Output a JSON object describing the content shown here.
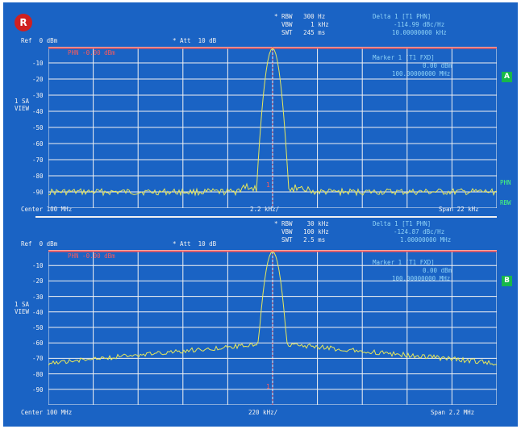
{
  "logo": "R",
  "colors": {
    "background": "#1a63c4",
    "grid": "#f2f2f2",
    "trace": "#e8e85a",
    "refline": "#ff5a5a",
    "text": "#f2f2f2",
    "marker": "#8fd3f7",
    "badge": "#17b84a"
  },
  "top": {
    "settings": [
      "* RBW   300 Hz",
      "  VBW     1 kHz",
      "  SWT   245 ms"
    ],
    "ref": "Ref  0 dBm",
    "att": "* Att  10 dB",
    "marker_readout": [
      "Delta 1 [T1 PHN]",
      "-114.99 dBc/Hz",
      "10.00000000 kHz"
    ],
    "marker2_readout": [
      "Marker 1 [T1 FXD]",
      "0.00 dBm",
      "100.00000000 MHz"
    ],
    "view": [
      "1 SA",
      "VIEW"
    ],
    "badge": "A",
    "ref_level_label": "PHN -0.00 dBm",
    "y_labels": [
      "-10",
      "-20",
      "-30",
      "-40",
      "-50",
      "-60",
      "-70",
      "-80",
      "-90"
    ],
    "footer_left": "Center 100 MHz",
    "footer_mid": "2.2 kHz/",
    "footer_right": "Span 22 kHz",
    "right_labels": [
      "PHN",
      "RBW"
    ]
  },
  "bottom": {
    "settings": [
      "* RBW    30 kHz",
      "  VBW   100 kHz",
      "  SWT   2.5 ms"
    ],
    "ref": "Ref  0 dBm",
    "att": "* Att  10 dB",
    "marker_readout": [
      "Delta 1 [T1 PHN]",
      "-124.87 dBc/Hz",
      "1.00000000 MHz"
    ],
    "marker2_readout": [
      "Marker 1 [T1 FXD]",
      "0.00 dBm",
      "100.00000000 MHz"
    ],
    "view": [
      "1 SA",
      "VIEW"
    ],
    "badge": "B",
    "ref_level_label": "PHN -0.00 dBm",
    "y_labels": [
      "-10",
      "-20",
      "-30",
      "-40",
      "-50",
      "-60",
      "-70",
      "-80",
      "-90"
    ],
    "footer_left": "Center 100 MHz",
    "footer_mid": "220 kHz/",
    "footer_right": "Span 2.2 MHz"
  }
}
